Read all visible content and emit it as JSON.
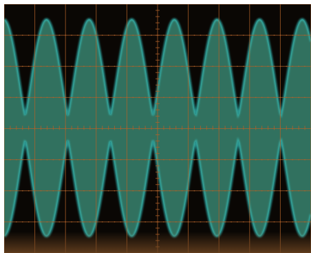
{
  "display": {
    "background_color": "#0a0704",
    "graticule_color": "#b0622a",
    "trace_fill_color": "#3c8f7a",
    "trace_edge_color": "#35c8c4",
    "bottom_glow_color": "#6b4320",
    "grid": true,
    "major_divisions_x": 10,
    "major_divisions_y": 8,
    "minor_ticks_per_division": 5
  },
  "waveform": {
    "type": "amplitude-modulated envelope",
    "envelope_peaks": 8,
    "envelope_cycles": 7.2,
    "envelope_phase_shift_div": 0.0
  }
}
